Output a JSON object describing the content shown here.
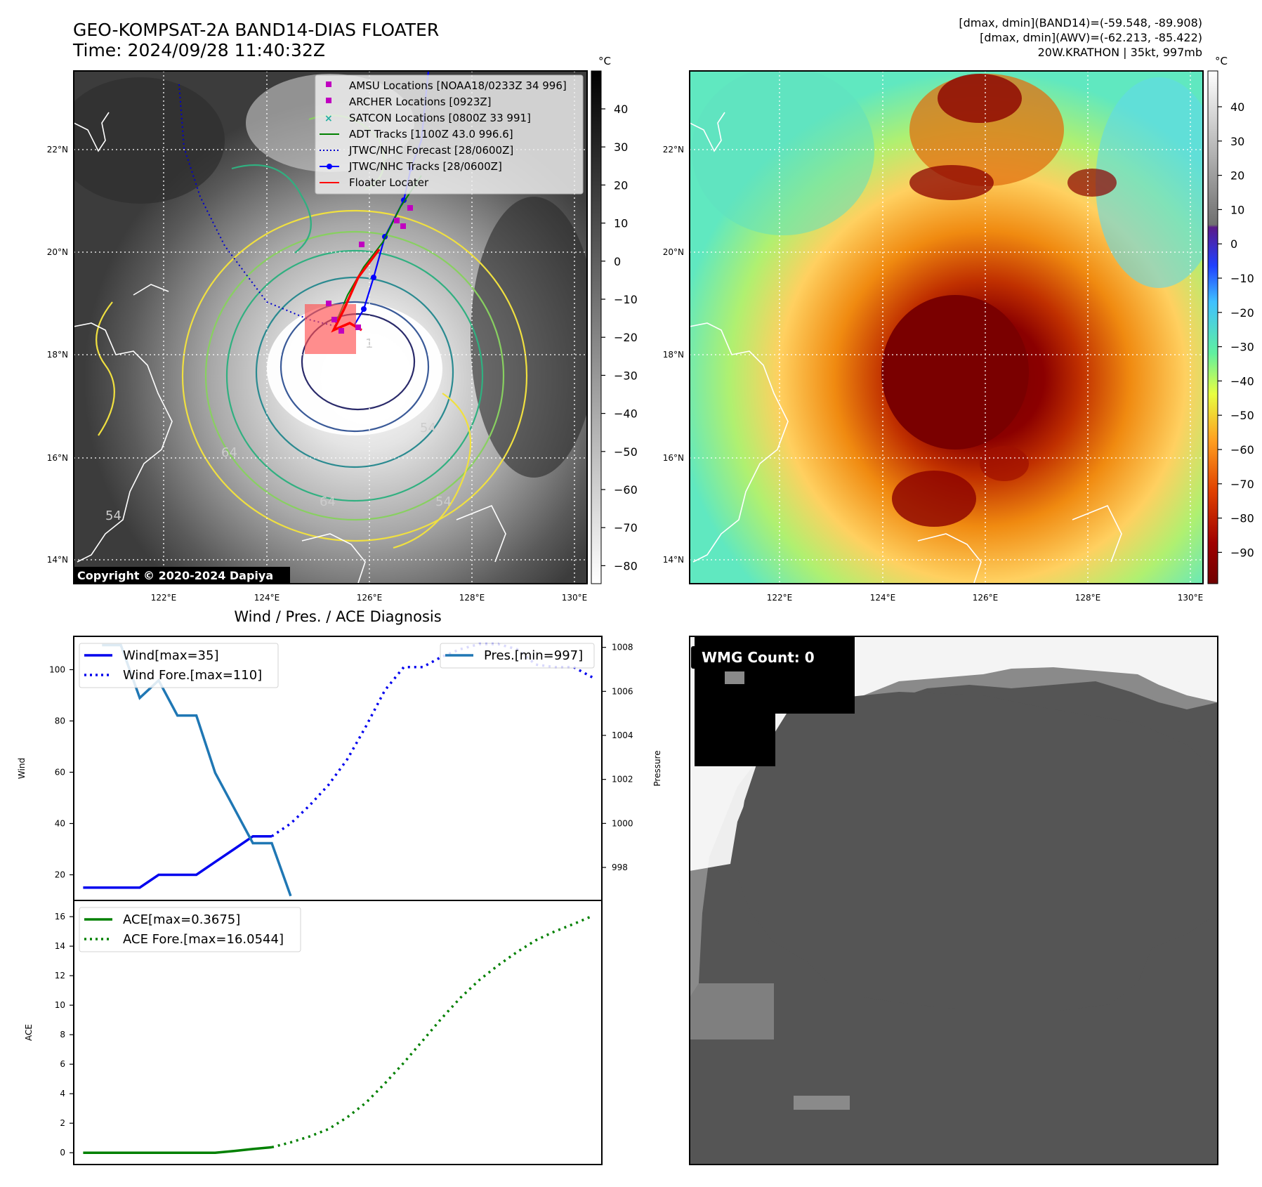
{
  "header": {
    "title_line1": "GEO-KOMPSAT-2A BAND14-DIAS FLOATER",
    "title_line2": "Time: 2024/09/28 11:40:32Z",
    "info_line1": "[dmax, dmin](BAND14)=(-59.548, -89.908)",
    "info_line2": "[dmax, dmin](AWV)=(-62.213, -85.422)",
    "info_line3": "20W.KRATHON | 35kt, 997mb"
  },
  "copyright": "Copyright © 2020-2024 Dapiya",
  "unit": "°C",
  "map": {
    "lon_ticks": [
      "122°E",
      "124°E",
      "126°E",
      "128°E",
      "130°E"
    ],
    "lat_ticks": [
      "22°N",
      "20°N",
      "18°N",
      "16°N",
      "14°N"
    ],
    "contour_labels": [
      "64",
      "64",
      "54",
      "54",
      "54",
      "1"
    ]
  },
  "colorbar_gray": {
    "ticks": [
      "40",
      "30",
      "20",
      "10",
      "0",
      "−10",
      "−20",
      "−30",
      "−40",
      "−50",
      "−60",
      "−70",
      "−80"
    ]
  },
  "colorbar_color": {
    "ticks": [
      "40",
      "30",
      "20",
      "10",
      "0",
      "−10",
      "−20",
      "−30",
      "−40",
      "−50",
      "−60",
      "−70",
      "−80",
      "−90"
    ]
  },
  "legend": {
    "items": [
      {
        "label": "AMSU Locations [NOAA18/0233Z 34 996]",
        "color": "#c000c0"
      },
      {
        "label": "ARCHER Locations [0923Z]",
        "color": "#c000c0"
      },
      {
        "label": "SATCON Locations [0800Z 33 991]",
        "color": "#20b0a0"
      },
      {
        "label": "ADT Tracks [1100Z 43.0 996.6]",
        "color": "#008000"
      },
      {
        "label": "JTWC/NHC Forecast [28/0600Z]",
        "color": "#0000cc"
      },
      {
        "label": "JTWC/NHC Tracks [28/0600Z]",
        "color": "#0000ff"
      },
      {
        "label": "Floater Locater",
        "color": "#ff0000"
      }
    ]
  },
  "diag": {
    "title": "Wind / Pres. / ACE Diagnosis",
    "wind_ylabel": "Wind",
    "pres_ylabel": "Pressure",
    "ace_ylabel": "ACE",
    "wind_legend": [
      "Wind[max=35]",
      "Wind Fore.[max=110]"
    ],
    "pres_legend": "Pres.[min=997]",
    "ace_legend": [
      "ACE[max=0.3675]",
      "ACE Fore.[max=16.0544]"
    ]
  },
  "wmg": {
    "label": "WMG Count: 0"
  },
  "chart_data": [
    {
      "type": "line",
      "title": "Wind / Pres. / ACE Diagnosis",
      "ylabel": "Wind",
      "ylim": [
        10,
        113
      ],
      "yticks": [
        20,
        40,
        60,
        80,
        100
      ],
      "xlim": [
        -0.5,
        27.5
      ],
      "series": [
        {
          "name": "Wind[max=35]",
          "axis": "left",
          "style": "solid",
          "color": "#0000ee",
          "x": [
            0,
            1,
            2,
            3,
            4,
            5,
            6,
            7,
            8,
            9,
            10
          ],
          "y": [
            15,
            15,
            15,
            15,
            20,
            20,
            20,
            25,
            30,
            35,
            35
          ]
        },
        {
          "name": "Wind Fore.[max=110]",
          "axis": "left",
          "style": "dotted",
          "color": "#0000ee",
          "x": [
            10,
            11,
            12,
            13,
            14,
            15,
            16,
            17,
            18,
            19,
            20,
            21,
            22,
            23,
            24,
            25,
            26,
            27
          ],
          "y": [
            35,
            40,
            47,
            55,
            65,
            78,
            92,
            101,
            101,
            105,
            108,
            110,
            110,
            108,
            102,
            101,
            101,
            97
          ]
        },
        {
          "name": "Pres.[min=997]",
          "axis": "right",
          "style": "solid",
          "color": "#1f77b4",
          "x": [
            1,
            2,
            3,
            4,
            5,
            6,
            7,
            8,
            9,
            10,
            11
          ],
          "y": [
            1008.1,
            1008.1,
            1005.7,
            1006.5,
            1004.9,
            1004.9,
            1002.3,
            1000.7,
            999.1,
            999.1,
            996.7
          ]
        }
      ],
      "y2label": "Pressure",
      "y2lim": [
        996.5,
        1008.5
      ],
      "y2ticks": [
        998,
        1000,
        1002,
        1004,
        1006,
        1008
      ]
    },
    {
      "type": "line",
      "ylabel": "ACE",
      "ylim": [
        -0.8,
        17.1
      ],
      "yticks": [
        0,
        2,
        4,
        6,
        8,
        10,
        12,
        14,
        16
      ],
      "xlim": [
        -0.5,
        27.5
      ],
      "series": [
        {
          "name": "ACE[max=0.3675]",
          "style": "solid",
          "color": "#008000",
          "x": [
            0,
            1,
            2,
            3,
            4,
            5,
            6,
            7,
            8,
            9,
            10
          ],
          "y": [
            0,
            0,
            0,
            0,
            0,
            0,
            0,
            0,
            0.12,
            0.25,
            0.37
          ]
        },
        {
          "name": "ACE Fore.[max=16.0544]",
          "style": "dotted",
          "color": "#008000",
          "x": [
            10,
            11,
            12,
            13,
            14,
            15,
            16,
            17,
            18,
            19,
            20,
            21,
            22,
            23,
            24,
            25,
            26,
            27
          ],
          "y": [
            0.37,
            0.7,
            1.1,
            1.6,
            2.4,
            3.4,
            4.7,
            6.1,
            7.6,
            9.1,
            10.5,
            11.7,
            12.7,
            13.6,
            14.4,
            15.0,
            15.5,
            16.05
          ]
        }
      ]
    }
  ]
}
